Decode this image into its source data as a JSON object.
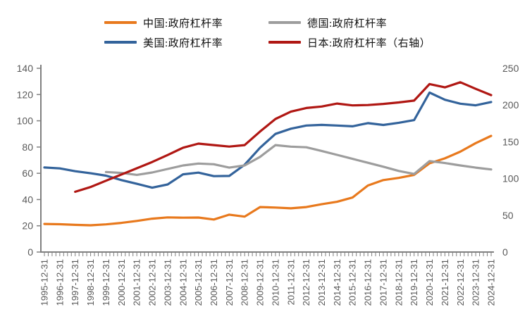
{
  "legend": {
    "items": [
      {
        "id": "china",
        "label": "中国:政府杠杆率",
        "color": "#E8791D"
      },
      {
        "id": "germany",
        "label": "德国:政府杠杆率",
        "color": "#9D9D9D"
      },
      {
        "id": "us",
        "label": "美国:政府杠杆率",
        "color": "#33639B"
      },
      {
        "id": "japan",
        "label": "日本:政府杠杆率（右轴）",
        "color": "#B01713"
      }
    ]
  },
  "chart_data": {
    "type": "line",
    "title": "",
    "grid": false,
    "legend_position": "top",
    "x_labels": [
      "1995-12-31",
      "1996-12-31",
      "1997-12-31",
      "1998-12-31",
      "1999-12-31",
      "2000-12-31",
      "2001-12-31",
      "2002-12-31",
      "2003-12-31",
      "2004-12-31",
      "2005-12-31",
      "2006-12-31",
      "2007-12-31",
      "2008-12-31",
      "2009-12-31",
      "2010-12-31",
      "2011-12-31",
      "2012-12-31",
      "2013-12-31",
      "2014-12-31",
      "2015-12-31",
      "2016-12-31",
      "2017-12-31",
      "2018-12-31",
      "2019-12-31",
      "2020-12-31",
      "2021-12-31",
      "2022-12-31",
      "2023-12-31",
      "2024-12-31"
    ],
    "x_minor_ticks_per_year": 4,
    "left_axis": {
      "min": 0,
      "max": 140,
      "step": 20,
      "ticks": [
        "0",
        "20",
        "40",
        "60",
        "80",
        "100",
        "120",
        "140"
      ]
    },
    "right_axis": {
      "min": 0,
      "max": 250,
      "step": 50,
      "ticks": [
        "0",
        "50",
        "100",
        "150",
        "200",
        "250"
      ]
    },
    "axis_color": "#808080",
    "label_color": "#595959",
    "series": [
      {
        "id": "china",
        "name": "中国:政府杠杆率",
        "axis": "left",
        "color": "#E8791D",
        "values": [
          21.4,
          21.2,
          20.7,
          20.4,
          21.1,
          22.2,
          23.7,
          25.4,
          26.4,
          26.2,
          26.3,
          24.8,
          28.5,
          27.0,
          34.3,
          33.9,
          33.3,
          34.3,
          36.4,
          38.3,
          41.5,
          50.7,
          54.8,
          56.5,
          58.8,
          67.6,
          71.4,
          76.5,
          83.0,
          88.5
        ]
      },
      {
        "id": "us",
        "name": "美国:政府杠杆率",
        "axis": "left",
        "color": "#33639B",
        "values": [
          64.4,
          63.7,
          61.6,
          60.0,
          58.2,
          54.8,
          52.0,
          49.0,
          51.5,
          59.2,
          60.5,
          57.8,
          58.0,
          66.5,
          79.5,
          90.0,
          94.0,
          96.4,
          96.9,
          96.4,
          95.8,
          98.2,
          96.8,
          98.5,
          100.5,
          121.5,
          116.0,
          113.0,
          111.8,
          114.3
        ]
      },
      {
        "id": "germany",
        "name": "德国:政府杠杆率",
        "axis": "left",
        "color": "#9D9D9D",
        "values": [
          null,
          null,
          null,
          null,
          61.0,
          60.3,
          58.8,
          60.6,
          63.3,
          66.0,
          67.4,
          66.9,
          64.3,
          66.0,
          72.5,
          81.5,
          80.3,
          79.8,
          77.0,
          74.0,
          71.0,
          68.0,
          65.0,
          61.8,
          59.5,
          69.3,
          67.8,
          66.0,
          64.3,
          62.9
        ]
      },
      {
        "id": "japan",
        "name": "日本:政府杠杆率（右轴）",
        "axis": "right",
        "color": "#B01713",
        "values": [
          null,
          null,
          82.0,
          88.5,
          97.0,
          105.5,
          114.0,
          122.5,
          132.0,
          142.0,
          147.5,
          145.5,
          143.5,
          145.5,
          164.0,
          181.0,
          191.0,
          196.0,
          198.0,
          202.0,
          199.5,
          200.0,
          201.5,
          203.5,
          206.0,
          228.5,
          224.0,
          231.0,
          222.0,
          213.5
        ]
      }
    ]
  }
}
